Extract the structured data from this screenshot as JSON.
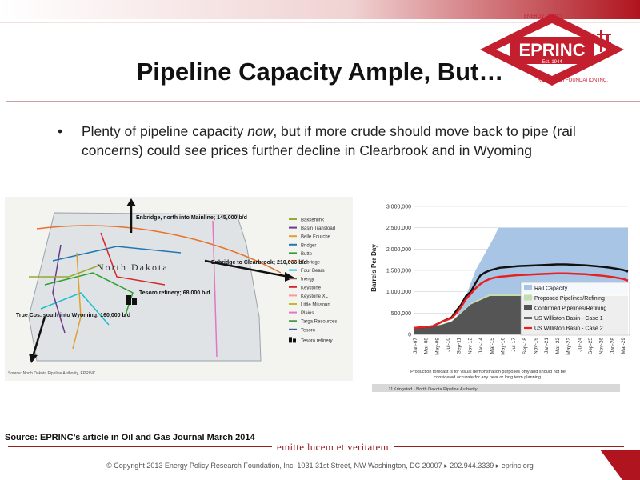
{
  "slide": {
    "title": "Pipeline Capacity Ample, But…",
    "bullet_before": "Plenty of pipeline capacity ",
    "bullet_em": "now",
    "bullet_after": ", but if more crude should move back to pipe (rail concerns) could see prices further decline in Clearbrook and in Wyoming",
    "source": "Source: EPRINC’s article in Oil and Gas Journal March 2014",
    "motto": "emitte lucem et veritatem",
    "footer": "© Copyright 2013 Energy Policy Research Foundation, Inc. 1031 31st Street, NW Washington, DC 20007 ▸ 202.944.3339 ▸ eprinc.org"
  },
  "logo": {
    "name": "EPRINC",
    "est": "Est. 1944",
    "ring_top": "ENERGY POLICY",
    "ring_bottom": "RESEARCH FOUNDATION INC.",
    "color": "#c41f2e"
  },
  "map": {
    "state": "North Dakota",
    "callouts": {
      "enbridge_north": "Enbridge, north into Mainline; 145,000 b/d",
      "enbridge_clearbrook": "Enbridge to Clearbrook; 210,000 b/d",
      "tesoro": "Tesoro refinery; 68,000 b/d",
      "true_cos": "True Cos. south into Wyoming; 160,000 b/d"
    },
    "legend": [
      {
        "label": "Bakkenlink",
        "color": "#9aa82f"
      },
      {
        "label": "Basin Transload",
        "color": "#6b3a8e"
      },
      {
        "label": "Belle Fourche",
        "color": "#e0a030"
      },
      {
        "label": "Bridger",
        "color": "#1f77b4"
      },
      {
        "label": "Butte",
        "color": "#2ca02c"
      },
      {
        "label": "Enbridge",
        "color": "#e8702a"
      },
      {
        "label": "Four Bears",
        "color": "#17becf"
      },
      {
        "label": "Inergy",
        "color": "#8c564b"
      },
      {
        "label": "Keystone",
        "color": "#d62728"
      },
      {
        "label": "Keystone XL",
        "color": "#ff9896"
      },
      {
        "label": "Little Missouri",
        "color": "#bcbd22"
      },
      {
        "label": "Plains",
        "color": "#e377c2"
      },
      {
        "label": "Targa Resources",
        "color": "#4d9c4d"
      },
      {
        "label": "Tesoro",
        "color": "#3b5ba5"
      }
    ],
    "legend_refinery": "Tesoro refinery",
    "source": "Source: North Dakota Pipeline Authority, EPRINC"
  },
  "chart_data": {
    "type": "area",
    "ylabel": "Barrels Per Day",
    "ylim": [
      0,
      3000000
    ],
    "yticks": [
      "3,000,000",
      "2,500,000",
      "2,000,000",
      "1,500,000",
      "1,000,000",
      "500,000",
      "0"
    ],
    "xticks": [
      "Jan-07",
      "Mar-08",
      "May-09",
      "Jul-10",
      "Sep-11",
      "Nov-12",
      "Jan-14",
      "Mar-15",
      "May-16",
      "Jul-17",
      "Sep-18",
      "Nov-19",
      "Jan-21",
      "Mar-22",
      "May-23",
      "Jul-24",
      "Sep-25",
      "Nov-26",
      "Jan-28",
      "Mar-29"
    ],
    "x_dates": [
      2007.0,
      2008.0,
      2009.0,
      2010.0,
      2011.0,
      2011.5,
      2012.0,
      2012.5,
      2013.0,
      2013.5,
      2014.0,
      2014.5,
      2015.0,
      2015.5,
      2016.0,
      2017.0,
      2018.0,
      2019.0,
      2020.0,
      2021.0,
      2022.0,
      2023.0,
      2024.0,
      2025.0,
      2026.0,
      2027.0,
      2028.0,
      2029.0,
      2029.5
    ],
    "series": [
      {
        "name": "Rail Capacity",
        "color": "#a9c5e6",
        "values": [
          0,
          0,
          0,
          0,
          0,
          0,
          0,
          0,
          0,
          0,
          0,
          0,
          0,
          0,
          0,
          0,
          0,
          0,
          0,
          0,
          0,
          0,
          0,
          0,
          0,
          0,
          0,
          0,
          0
        ]
      },
      {
        "name": "Proposed Pipelines/Refining",
        "color": "#c3ddb0",
        "values": [
          150000,
          160000,
          180000,
          230000,
          300000,
          400000,
          500000,
          600000,
          700000,
          750000,
          800000,
          850000,
          900000,
          900000,
          900000,
          900000,
          900000,
          900000,
          900000,
          900000,
          900000,
          900000,
          900000,
          900000,
          900000,
          900000,
          900000,
          900000,
          900000
        ]
      },
      {
        "name": "Confirmed Pipelines/Refining",
        "color": "#555555",
        "values": [
          150000,
          160000,
          180000,
          230000,
          300000,
          400000,
          500000,
          600000,
          700000,
          750000,
          800000,
          850000,
          900000,
          900000,
          900000,
          900000,
          900000,
          900000,
          900000,
          900000,
          900000,
          900000,
          900000,
          900000,
          900000,
          900000,
          900000,
          900000,
          900000
        ]
      },
      {
        "name": "US Williston Basin - Case 1",
        "color": "#111111",
        "values": [
          150000,
          170000,
          190000,
          300000,
          400000,
          560000,
          700000,
          900000,
          1000000,
          1200000,
          1380000,
          1450000,
          1500000,
          1530000,
          1560000,
          1580000,
          1600000,
          1610000,
          1620000,
          1630000,
          1640000,
          1640000,
          1630000,
          1620000,
          1600000,
          1580000,
          1550000,
          1510000,
          1470000
        ]
      },
      {
        "name": "US Williston Basin - Case 2",
        "color": "#e8201f",
        "values": [
          150000,
          170000,
          190000,
          300000,
          380000,
          500000,
          650000,
          830000,
          950000,
          1080000,
          1180000,
          1250000,
          1300000,
          1330000,
          1350000,
          1370000,
          1390000,
          1400000,
          1410000,
          1420000,
          1430000,
          1430000,
          1420000,
          1410000,
          1390000,
          1370000,
          1340000,
          1300000,
          1260000
        ]
      }
    ],
    "rail_steps": [
      [
        2007,
        0
      ],
      [
        2010.5,
        0
      ],
      [
        2011,
        150000
      ],
      [
        2011.5,
        400000
      ],
      [
        2012,
        700000
      ],
      [
        2012.5,
        900000
      ],
      [
        2013,
        1200000
      ],
      [
        2013.5,
        1500000
      ],
      [
        2014,
        1700000
      ],
      [
        2014.5,
        1900000
      ],
      [
        2015,
        2100000
      ],
      [
        2015.5,
        2300000
      ],
      [
        2015.9,
        2500000
      ],
      [
        2029.5,
        2500000
      ]
    ],
    "note": "Production forecast is for visual demonstration purposes only and should not be considered accurate for any near or long term planning.",
    "credit": "JJ Kringstad - North Dakota Pipeline Authority"
  }
}
